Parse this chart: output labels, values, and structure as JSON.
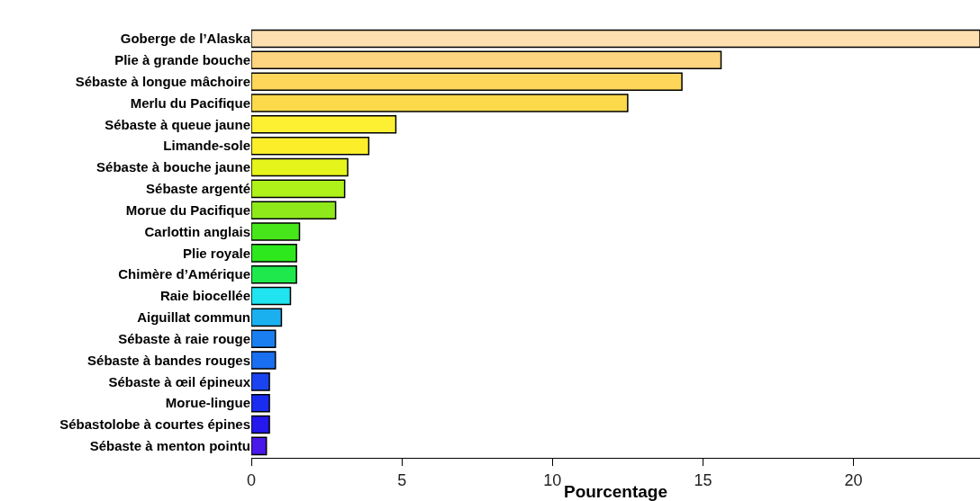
{
  "chart_data": {
    "type": "bar",
    "orientation": "horizontal",
    "xlabel": "Pourcentage",
    "categories": [
      "Goberge de l’Alaska",
      "Plie à grande bouche",
      "Sébaste à longue mâchoire",
      "Merlu du Pacifique",
      "Sébaste à queue jaune",
      "Limande-sole",
      "Sébaste à bouche jaune",
      "Sébaste argenté",
      "Morue du Pacifique",
      "Carlottin anglais",
      "Plie royale",
      "Chimère d’Amérique",
      "Raie biocellée",
      "Aiguillat commun",
      "Sébaste à raie rouge",
      "Sébaste à bandes rouges",
      "Sébaste à œil épineux",
      "Morue-lingue",
      "Sébastolobe à courtes épines",
      "Sébaste à menton pointu"
    ],
    "values": [
      24.2,
      15.6,
      14.3,
      12.5,
      4.8,
      3.9,
      3.2,
      3.1,
      2.8,
      1.6,
      1.5,
      1.5,
      1.3,
      1.0,
      0.8,
      0.8,
      0.6,
      0.6,
      0.6,
      0.5
    ],
    "colors": [
      "#fee0b0",
      "#fdd580",
      "#fed65a",
      "#fcd94a",
      "#fdf032",
      "#fcef2a",
      "#e5f41a",
      "#aef21a",
      "#8ee81a",
      "#46e61a",
      "#2ee81e",
      "#1ee84c",
      "#20e4f0",
      "#1ab0f0",
      "#1a7ef0",
      "#1a6ef0",
      "#1a44f0",
      "#1a2cf0",
      "#2418ec",
      "#4a18e8"
    ],
    "xlim": [
      0,
      24.2
    ],
    "xticks": [
      0,
      5,
      10,
      15,
      20
    ]
  }
}
